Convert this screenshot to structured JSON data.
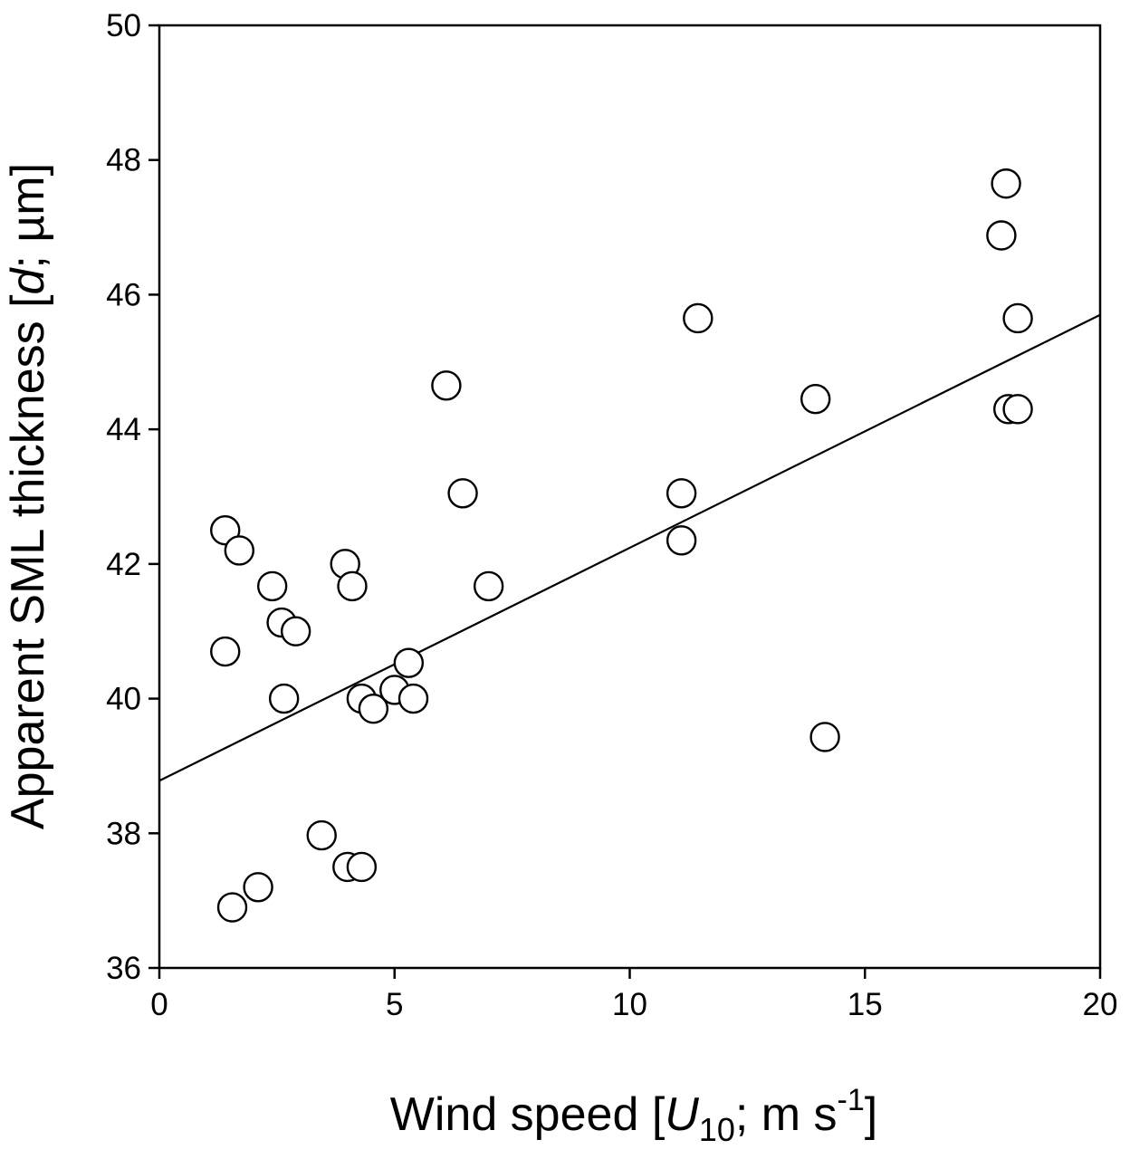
{
  "chart_data": {
    "type": "scatter",
    "xlim": [
      0,
      20
    ],
    "ylim": [
      36,
      50
    ],
    "x_ticks": [
      "0",
      "5",
      "10",
      "15",
      "20"
    ],
    "y_ticks": [
      "36",
      "38",
      "40",
      "42",
      "44",
      "46",
      "48",
      "50"
    ],
    "xlabel": {
      "prefix": "Wind speed [",
      "var": "U",
      "sub": "10",
      "mid": "; m s",
      "sup": "-1",
      "suffix": "]"
    },
    "ylabel": {
      "prefix": "Apparent SML thickness [",
      "var": "d",
      "suffix": "; µm]"
    },
    "grid": false,
    "legend": "none",
    "marker": "open-circle",
    "points": [
      {
        "x": 1.4,
        "y": 42.5
      },
      {
        "x": 1.7,
        "y": 42.2
      },
      {
        "x": 1.4,
        "y": 40.7
      },
      {
        "x": 1.55,
        "y": 36.9
      },
      {
        "x": 2.1,
        "y": 37.2
      },
      {
        "x": 2.4,
        "y": 41.67
      },
      {
        "x": 2.6,
        "y": 41.13
      },
      {
        "x": 2.9,
        "y": 41.0
      },
      {
        "x": 2.65,
        "y": 40.0
      },
      {
        "x": 3.45,
        "y": 37.97
      },
      {
        "x": 3.95,
        "y": 42.0
      },
      {
        "x": 4.1,
        "y": 41.67
      },
      {
        "x": 4.0,
        "y": 37.5
      },
      {
        "x": 4.3,
        "y": 37.5
      },
      {
        "x": 4.3,
        "y": 40.0
      },
      {
        "x": 4.55,
        "y": 39.85
      },
      {
        "x": 5.0,
        "y": 40.13
      },
      {
        "x": 5.3,
        "y": 40.53
      },
      {
        "x": 5.4,
        "y": 40.0
      },
      {
        "x": 6.1,
        "y": 44.65
      },
      {
        "x": 6.45,
        "y": 43.05
      },
      {
        "x": 7.0,
        "y": 41.67
      },
      {
        "x": 11.1,
        "y": 43.05
      },
      {
        "x": 11.1,
        "y": 42.35
      },
      {
        "x": 11.45,
        "y": 45.65
      },
      {
        "x": 13.95,
        "y": 44.45
      },
      {
        "x": 14.15,
        "y": 39.43
      },
      {
        "x": 17.9,
        "y": 46.88
      },
      {
        "x": 18.0,
        "y": 47.65
      },
      {
        "x": 18.05,
        "y": 44.3
      },
      {
        "x": 18.25,
        "y": 45.65
      },
      {
        "x": 18.25,
        "y": 44.3
      }
    ],
    "regression_line": {
      "x": [
        0,
        20
      ],
      "y": [
        38.78,
        45.7
      ]
    }
  }
}
